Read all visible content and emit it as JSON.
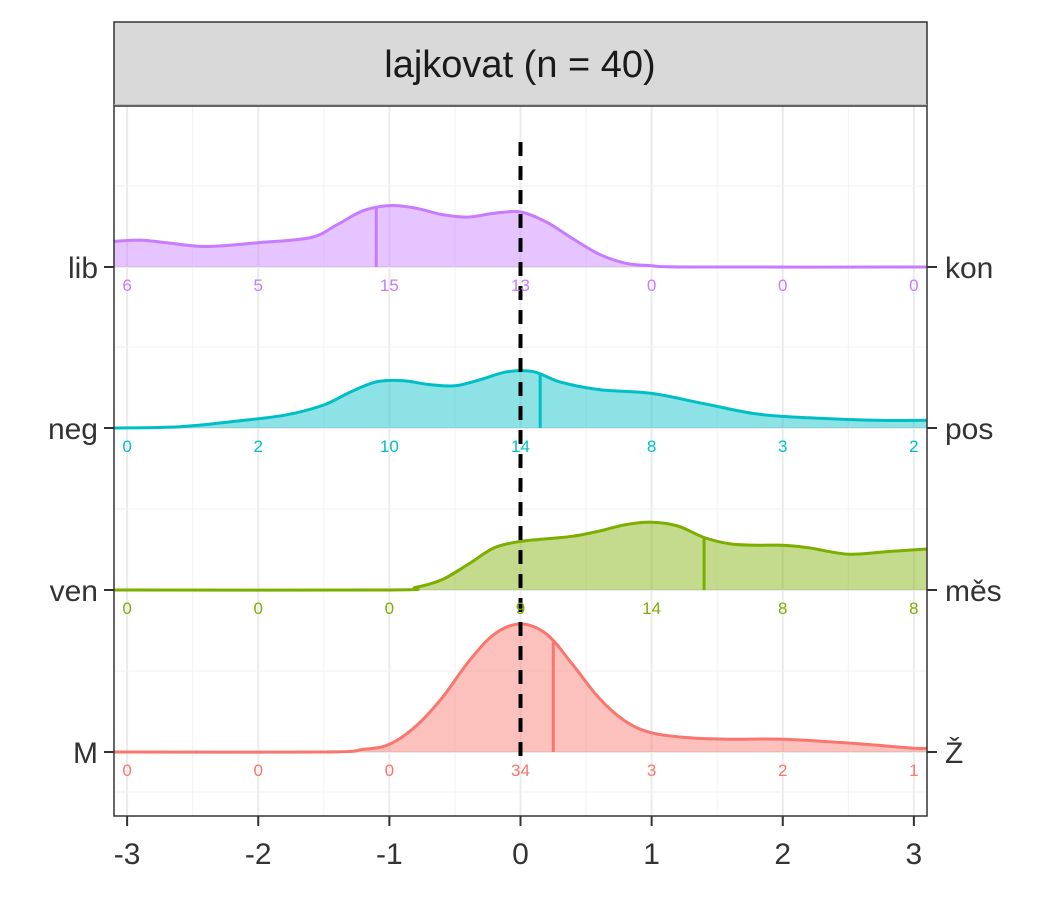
{
  "chart_data": {
    "type": "ridgeline density",
    "title": "lajkovat (n = 40)",
    "xlim": [
      -3.1,
      3.1
    ],
    "x_ticks": [
      "-3",
      "-2",
      "-1",
      "0",
      "1",
      "2",
      "3"
    ],
    "x_tick_values": [
      -3,
      -2,
      -1,
      0,
      1,
      2,
      3
    ],
    "reference_line": 0,
    "count_bins": [
      -3,
      -2,
      -1,
      0,
      1,
      2,
      3
    ],
    "series": [
      {
        "left": "M",
        "right": "Ž",
        "color": "#F8766D",
        "counts": [
          "0",
          "0",
          "0",
          "34",
          "3",
          "2",
          "1"
        ],
        "median": 0.25,
        "density": [
          [
            -3.1,
            0
          ],
          [
            -1.5,
            0
          ],
          [
            -1.2,
            0.02
          ],
          [
            -1.0,
            0.06
          ],
          [
            -0.8,
            0.2
          ],
          [
            -0.6,
            0.42
          ],
          [
            -0.4,
            0.7
          ],
          [
            -0.2,
            0.92
          ],
          [
            0,
            1.0
          ],
          [
            0.2,
            0.92
          ],
          [
            0.4,
            0.68
          ],
          [
            0.6,
            0.42
          ],
          [
            0.8,
            0.24
          ],
          [
            1.0,
            0.15
          ],
          [
            1.3,
            0.11
          ],
          [
            1.6,
            0.1
          ],
          [
            2.0,
            0.1
          ],
          [
            2.5,
            0.07
          ],
          [
            3.0,
            0.03
          ],
          [
            3.1,
            0.03
          ]
        ]
      },
      {
        "left": "ven",
        "right": "měs",
        "color": "#7CAE00",
        "counts": [
          "0",
          "0",
          "0",
          "9",
          "14",
          "8",
          "8"
        ],
        "median": 1.4,
        "density": [
          [
            -3.1,
            0
          ],
          [
            -1.0,
            0
          ],
          [
            -0.8,
            0.02
          ],
          [
            -0.6,
            0.08
          ],
          [
            -0.4,
            0.2
          ],
          [
            -0.2,
            0.33
          ],
          [
            0,
            0.38
          ],
          [
            0.2,
            0.4
          ],
          [
            0.4,
            0.42
          ],
          [
            0.6,
            0.46
          ],
          [
            0.8,
            0.51
          ],
          [
            1.0,
            0.53
          ],
          [
            1.2,
            0.5
          ],
          [
            1.4,
            0.41
          ],
          [
            1.6,
            0.36
          ],
          [
            1.8,
            0.35
          ],
          [
            2.0,
            0.35
          ],
          [
            2.2,
            0.33
          ],
          [
            2.5,
            0.28
          ],
          [
            2.8,
            0.3
          ],
          [
            3.1,
            0.32
          ]
        ]
      },
      {
        "left": "neg",
        "right": "pos",
        "color": "#00BFC4",
        "counts": [
          "0",
          "2",
          "10",
          "14",
          "8",
          "3",
          "2"
        ],
        "median": 0.15,
        "density": [
          [
            -3.1,
            0
          ],
          [
            -2.6,
            0.01
          ],
          [
            -2.2,
            0.05
          ],
          [
            -1.8,
            0.1
          ],
          [
            -1.5,
            0.18
          ],
          [
            -1.3,
            0.28
          ],
          [
            -1.1,
            0.36
          ],
          [
            -0.9,
            0.37
          ],
          [
            -0.7,
            0.34
          ],
          [
            -0.5,
            0.33
          ],
          [
            -0.3,
            0.38
          ],
          [
            -0.1,
            0.44
          ],
          [
            0.1,
            0.44
          ],
          [
            0.3,
            0.36
          ],
          [
            0.6,
            0.3
          ],
          [
            1.0,
            0.27
          ],
          [
            1.4,
            0.19
          ],
          [
            1.8,
            0.11
          ],
          [
            2.2,
            0.08
          ],
          [
            2.7,
            0.06
          ],
          [
            3.1,
            0.06
          ]
        ]
      },
      {
        "left": "lib",
        "right": "kon",
        "color": "#C77CFF",
        "counts": [
          "6",
          "5",
          "15",
          "13",
          "0",
          "0",
          "0"
        ],
        "median": -1.1,
        "density": [
          [
            -3.1,
            0.2
          ],
          [
            -2.9,
            0.21
          ],
          [
            -2.7,
            0.19
          ],
          [
            -2.4,
            0.16
          ],
          [
            -2.0,
            0.19
          ],
          [
            -1.6,
            0.23
          ],
          [
            -1.4,
            0.33
          ],
          [
            -1.2,
            0.44
          ],
          [
            -1.0,
            0.48
          ],
          [
            -0.8,
            0.46
          ],
          [
            -0.6,
            0.41
          ],
          [
            -0.4,
            0.39
          ],
          [
            -0.2,
            0.42
          ],
          [
            0,
            0.43
          ],
          [
            0.2,
            0.35
          ],
          [
            0.4,
            0.22
          ],
          [
            0.6,
            0.1
          ],
          [
            0.8,
            0.03
          ],
          [
            1.0,
            0.01
          ],
          [
            1.3,
            0
          ],
          [
            3.1,
            0
          ]
        ]
      }
    ]
  }
}
